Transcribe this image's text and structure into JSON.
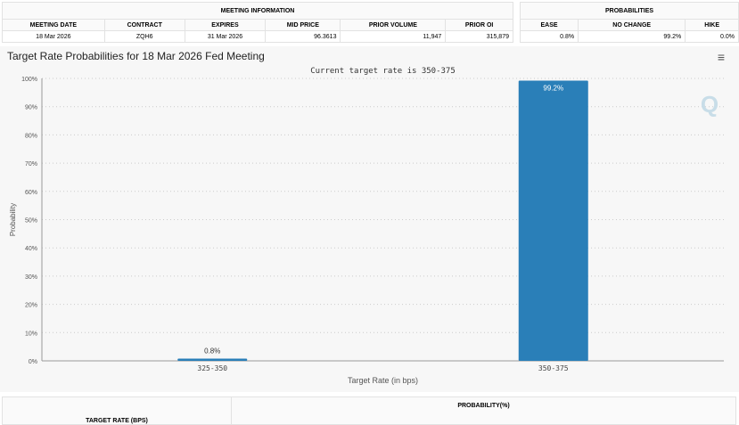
{
  "meeting_info": {
    "header": "MEETING INFORMATION",
    "columns": [
      "MEETING DATE",
      "CONTRACT",
      "EXPIRES",
      "MID PRICE",
      "PRIOR VOLUME",
      "PRIOR OI"
    ],
    "values": [
      "18 Mar 2026",
      "ZQH6",
      "31 Mar 2026",
      "96.3613",
      "11,947",
      "315,879"
    ]
  },
  "probabilities": {
    "header": "PROBABILITIES",
    "columns": [
      "EASE",
      "NO CHANGE",
      "HIKE"
    ],
    "values": [
      "0.8%",
      "99.2%",
      "0.0%"
    ]
  },
  "chart_header": {
    "title": "Target Rate Probabilities for 18 Mar 2026 Fed Meeting",
    "menu_icon": "hamburger-menu-icon"
  },
  "chart_data": {
    "type": "bar",
    "subtitle": "Current target rate is 350-375",
    "categories": [
      "325-350",
      "350-375"
    ],
    "values": [
      0.8,
      99.2
    ],
    "data_labels": [
      "0.8%",
      "99.2%"
    ],
    "xlabel": "Target Rate (in bps)",
    "ylabel": "Probability",
    "ylim": [
      0,
      100
    ],
    "yticks": [
      "0%",
      "10%",
      "20%",
      "30%",
      "40%",
      "50%",
      "60%",
      "70%",
      "80%",
      "90%",
      "100%"
    ],
    "grid": true,
    "bar_color": "#2a7fb8"
  },
  "bottom_table": {
    "columns": [
      "TARGET RATE (BPS)",
      "PROBABILITY(%)"
    ]
  }
}
